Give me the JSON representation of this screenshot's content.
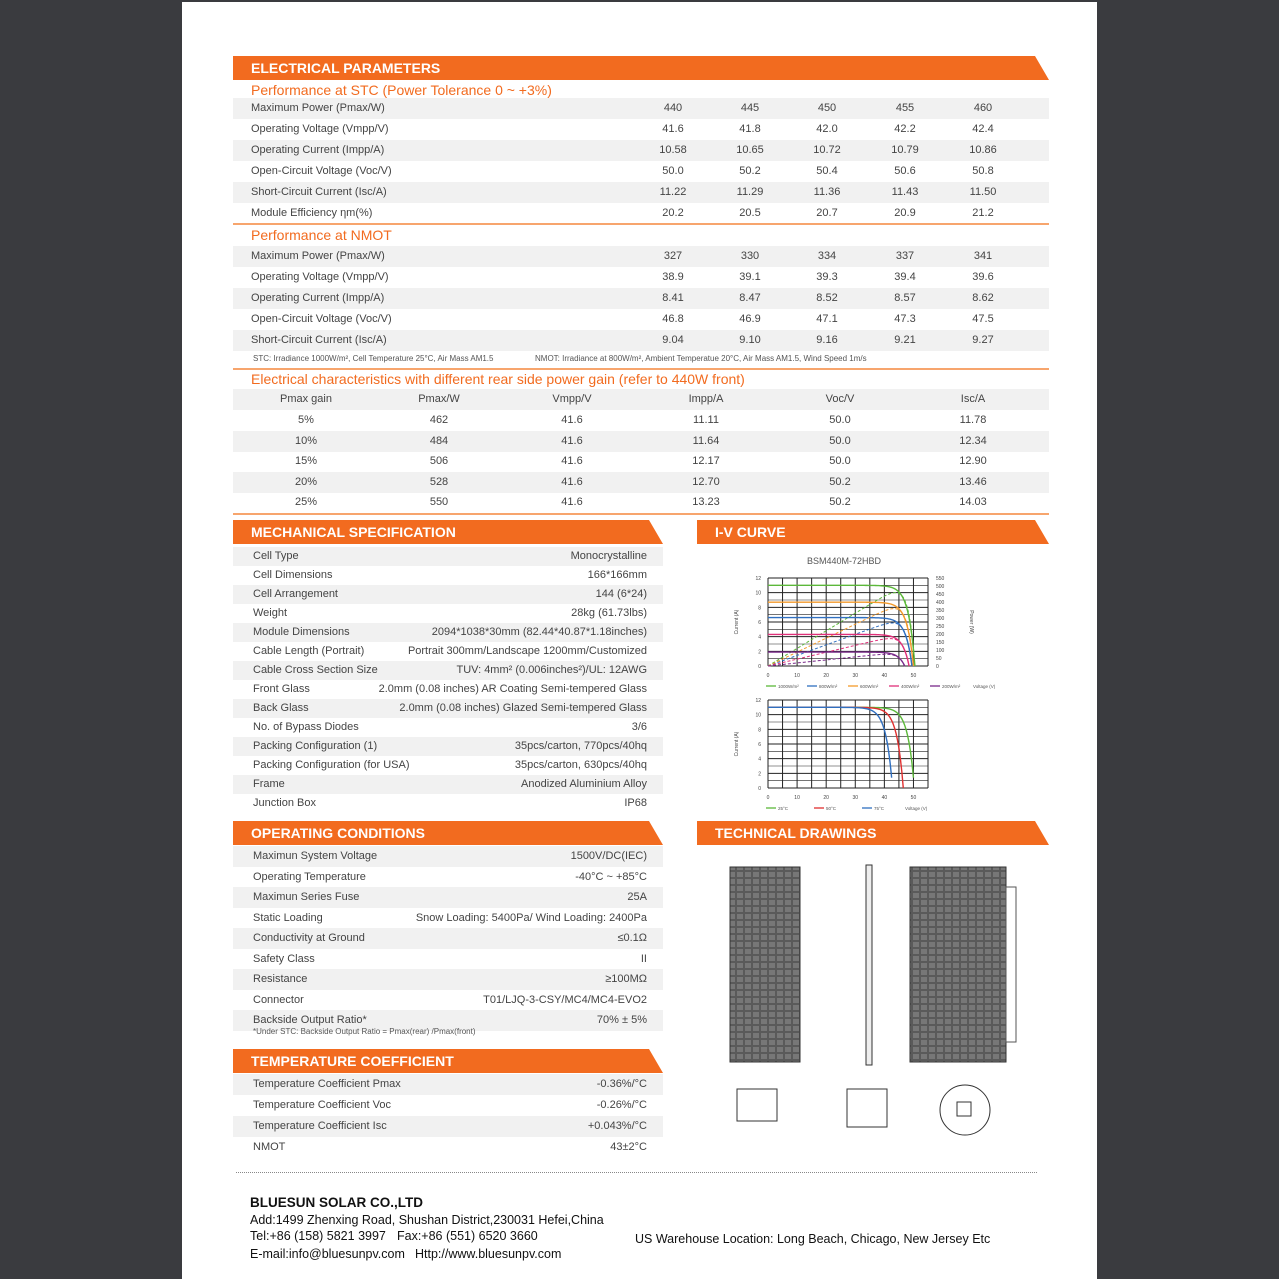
{
  "electrical": {
    "title": "ELECTRICAL PARAMETERS",
    "stc": {
      "title": "Performance at STC (Power Tolerance 0 ~ +3%)",
      "rows": [
        {
          "label": "Maximum Power (Pmax/W)",
          "values": [
            "440",
            "445",
            "450",
            "455",
            "460"
          ]
        },
        {
          "label": "Operating Voltage (Vmpp/V)",
          "values": [
            "41.6",
            "41.8",
            "42.0",
            "42.2",
            "42.4"
          ]
        },
        {
          "label": "Operating Current (Impp/A)",
          "values": [
            "10.58",
            "10.65",
            "10.72",
            "10.79",
            "10.86"
          ]
        },
        {
          "label": "Open-Circuit Voltage (Voc/V)",
          "values": [
            "50.0",
            "50.2",
            "50.4",
            "50.6",
            "50.8"
          ]
        },
        {
          "label": "Short-Circuit Current (Isc/A)",
          "values": [
            "11.22",
            "11.29",
            "11.36",
            "11.43",
            "11.50"
          ]
        },
        {
          "label": "Module Efficiency ηm(%)",
          "values": [
            "20.2",
            "20.5",
            "20.7",
            "20.9",
            "21.2"
          ]
        }
      ]
    },
    "nmot": {
      "title": "Performance at NMOT",
      "rows": [
        {
          "label": "Maximum Power (Pmax/W)",
          "values": [
            "327",
            "330",
            "334",
            "337",
            "341"
          ]
        },
        {
          "label": "Operating Voltage (Vmpp/V)",
          "values": [
            "38.9",
            "39.1",
            "39.3",
            "39.4",
            "39.6"
          ]
        },
        {
          "label": "Operating Current (Impp/A)",
          "values": [
            "8.41",
            "8.47",
            "8.52",
            "8.57",
            "8.62"
          ]
        },
        {
          "label": "Open-Circuit Voltage (Voc/V)",
          "values": [
            "46.8",
            "46.9",
            "47.1",
            "47.3",
            "47.5"
          ]
        },
        {
          "label": "Short-Circuit Current (Isc/A)",
          "values": [
            "9.04",
            "9.10",
            "9.16",
            "9.21",
            "9.27"
          ]
        }
      ]
    },
    "note_stc": "STC: Irradiance 1000W/m², Cell Temperature 25°C, Air Mass AM1.5",
    "note_nmot": "NMOT: Irradiance at 800W/m², Ambient Temperatue 20°C, Air Mass AM1.5, Wind Speed 1m/s",
    "rear": {
      "title": "Electrical characteristics with different rear side power gain (refer to 440W front)",
      "headers": [
        "Pmax gain",
        "Pmax/W",
        "Vmpp/V",
        "Impp/A",
        "Voc/V",
        "Isc/A"
      ],
      "rows": [
        [
          "5%",
          "462",
          "41.6",
          "11.11",
          "50.0",
          "11.78"
        ],
        [
          "10%",
          "484",
          "41.6",
          "11.64",
          "50.0",
          "12.34"
        ],
        [
          "15%",
          "506",
          "41.6",
          "12.17",
          "50.0",
          "12.90"
        ],
        [
          "20%",
          "528",
          "41.6",
          "12.70",
          "50.2",
          "13.46"
        ],
        [
          "25%",
          "550",
          "41.6",
          "13.23",
          "50.2",
          "14.03"
        ]
      ]
    }
  },
  "mechanical": {
    "title": "MECHANICAL SPECIFICATION",
    "rows": [
      [
        "Cell Type",
        "Monocrystalline"
      ],
      [
        "Cell Dimensions",
        "166*166mm"
      ],
      [
        "Cell Arrangement",
        "144 (6*24)"
      ],
      [
        "Weight",
        "28kg (61.73lbs)"
      ],
      [
        "Module Dimensions",
        "2094*1038*30mm (82.44*40.87*1.18inches)"
      ],
      [
        "Cable Length (Portrait)",
        "Portrait 300mm/Landscape 1200mm/Customized"
      ],
      [
        "Cable Cross Section Size",
        "TUV: 4mm² (0.006inches²)/UL: 12AWG"
      ],
      [
        "Front Glass",
        "2.0mm (0.08 inches) AR Coating Semi-tempered Glass"
      ],
      [
        "Back Glass",
        "2.0mm (0.08 inches) Glazed Semi-tempered Glass"
      ],
      [
        "No. of Bypass Diodes",
        "3/6"
      ],
      [
        "Packing Configuration (1)",
        "35pcs/carton, 770pcs/40hq"
      ],
      [
        "Packing Configuration (for USA)",
        "35pcs/carton, 630pcs/40hq"
      ],
      [
        "Frame",
        "Anodized Aluminium Alloy"
      ],
      [
        "Junction Box",
        "IP68"
      ]
    ]
  },
  "operating": {
    "title": "OPERATING CONDITIONS",
    "rows": [
      [
        "Maximun System Voltage",
        "1500V/DC(IEC)"
      ],
      [
        "Operating Temperature",
        "-40°C ~ +85°C"
      ],
      [
        "Maximun Series Fuse",
        "25A"
      ],
      [
        "Static Loading",
        "Snow Loading: 5400Pa/ Wind Loading: 2400Pa"
      ],
      [
        "Conductivity at Ground",
        "≤0.1Ω"
      ],
      [
        "Safety Class",
        "II"
      ],
      [
        "Resistance",
        "≥100MΩ"
      ],
      [
        "Connector",
        "T01/LJQ-3-CSY/MC4/MC4-EVO2"
      ],
      [
        "Backside Output Ratio*",
        "70% ± 5%"
      ]
    ],
    "backside_note": "*Under STC: Backside Output Ratio = Pmax(rear) /Pmax(front)"
  },
  "temperature": {
    "title": "TEMPERATURE COEFFICIENT",
    "rows": [
      [
        "Temperature Coefficient Pmax",
        "-0.36%/°C"
      ],
      [
        "Temperature Coefficient Voc",
        "-0.26%/°C"
      ],
      [
        "Temperature Coefficient Isc",
        "+0.043%/°C"
      ],
      [
        "NMOT",
        "43±2°C"
      ]
    ]
  },
  "iv": {
    "title": "I-V CURVE",
    "model": "BSM440M-72HBD",
    "ylabel": "Current (A)",
    "y2label": "Power (W)",
    "xlabel": "Voltage (V)",
    "xticks": [
      "0",
      "10",
      "20",
      "30",
      "40",
      "50"
    ],
    "yticks": [
      "0",
      "2",
      "4",
      "6",
      "8",
      "10",
      "12"
    ],
    "y2ticks": [
      "0",
      "50",
      "100",
      "150",
      "200",
      "250",
      "300",
      "350",
      "400",
      "450",
      "500",
      "550"
    ]
  },
  "chart_data": [
    {
      "type": "line",
      "title": "BSM440M-72HBD",
      "xlabel": "Voltage (V)",
      "ylabel": "Current (A)",
      "xlim": [
        0,
        55
      ],
      "ylim": [
        0,
        12
      ],
      "series": [
        {
          "name": "1000W/m²",
          "color": "#5cb83a",
          "isc": 11.0,
          "voc": 50.5
        },
        {
          "name": "800W/m²",
          "color": "#2f6fc0",
          "isc": 6.6,
          "voc": 49.5
        },
        {
          "name": "600W/m²",
          "color": "#f39a2b",
          "isc": 8.7,
          "voc": 50
        },
        {
          "name": "400W/m²",
          "color": "#e0307a",
          "isc": 4.3,
          "voc": 48.5
        },
        {
          "name": "200W/m²",
          "color": "#7a2a8a",
          "isc": 1.9,
          "voc": 47
        }
      ]
    },
    {
      "type": "line",
      "xlabel": "Voltage (V)",
      "ylabel": "Current (A)",
      "xlim": [
        0,
        55
      ],
      "ylim": [
        0,
        12
      ],
      "series": [
        {
          "name": "25°C",
          "color": "#5cb83a",
          "isc": 11.0,
          "voc": 50.3
        },
        {
          "name": "50°C",
          "color": "#e03030",
          "isc": 11.0,
          "voc": 46.5
        },
        {
          "name": "75°C",
          "color": "#2f6fc0",
          "isc": 11.0,
          "voc": 42.8
        }
      ]
    }
  ],
  "drawings": {
    "title": "TECHNICAL DRAWINGS"
  },
  "footer": {
    "company": "BLUESUN SOLAR CO.,LTD",
    "address": "Add:1499 Zhenxing Road, Shushan District,230031 Hefei,China",
    "tel": "Tel:+86 (158) 5821 3997",
    "fax": "Fax:+86 (551) 6520 3660",
    "email": "E-mail:info@bluesunpv.com",
    "web": "Http://www.bluesunpv.com",
    "warehouse": "US Warehouse Location: Long Beach, Chicago, New Jersey Etc"
  },
  "colors": {
    "accent": "#f26b1f"
  }
}
